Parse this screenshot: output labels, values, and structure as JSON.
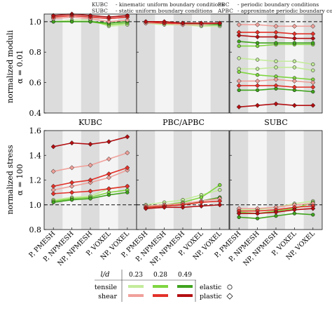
{
  "legend_top": {
    "left": [
      {
        "abbr": "KUBC",
        "desc": "- kinematic uniform boundary conditions"
      },
      {
        "abbr": "SUBC",
        "desc": "- static uniform boundary conditions"
      }
    ],
    "right": [
      {
        "abbr": "PBC",
        "desc": "- periodic boundary conditions"
      },
      {
        "abbr": "APBC",
        "desc": "- approximate periodic boundary conditions"
      }
    ]
  },
  "colors": {
    "tensile": [
      "#c3ec9a",
      "#7fd640",
      "#3fa31d"
    ],
    "shear": [
      "#f0a09a",
      "#e3322a",
      "#b30f12"
    ],
    "band": "#dcdcdc",
    "band_light": "#f4f4f4"
  },
  "chart_data": [
    {
      "type": "line",
      "ylabel": "normalized moduli",
      "ylabel2": "α = 0.01",
      "ylim": [
        0.4,
        1.05
      ],
      "yticks": [
        "0.4",
        "0.6",
        "0.8",
        "1.0"
      ],
      "ytick_values": [
        0.4,
        0.6,
        0.8,
        1.0
      ],
      "reference_line": 1.0,
      "panels": [
        {
          "label": "KUBC",
          "series": [
            {
              "load": "tensile",
              "ld": 0,
              "values": [
                1.0,
                1.01,
                1.01,
                0.97,
                0.98
              ]
            },
            {
              "load": "tensile",
              "ld": 1,
              "values": [
                1.0,
                1.0,
                1.0,
                0.98,
                0.99
              ]
            },
            {
              "load": "tensile",
              "ld": 2,
              "values": [
                1.0,
                1.0,
                1.0,
                0.99,
                1.0
              ]
            },
            {
              "load": "shear",
              "ld": 0,
              "values": [
                1.02,
                1.03,
                1.02,
                1.0,
                1.01
              ]
            },
            {
              "load": "shear",
              "ld": 1,
              "values": [
                1.03,
                1.04,
                1.03,
                1.02,
                1.03
              ]
            },
            {
              "load": "shear",
              "ld": 2,
              "values": [
                1.04,
                1.05,
                1.04,
                1.03,
                1.04
              ]
            }
          ]
        },
        {
          "label": "PBC/APBC",
          "series": [
            {
              "load": "tensile",
              "ld": 0,
              "values": [
                0.99,
                0.98,
                0.98,
                0.97,
                0.97
              ]
            },
            {
              "load": "tensile",
              "ld": 1,
              "values": [
                0.99,
                0.99,
                0.98,
                0.98,
                0.98
              ]
            },
            {
              "load": "tensile",
              "ld": 2,
              "values": [
                0.99,
                0.99,
                0.99,
                0.98,
                0.98
              ]
            },
            {
              "load": "shear",
              "ld": 0,
              "values": [
                0.99,
                0.99,
                0.98,
                0.98,
                0.99
              ]
            },
            {
              "load": "shear",
              "ld": 1,
              "values": [
                1.0,
                0.99,
                0.99,
                0.99,
                0.99
              ]
            },
            {
              "load": "shear",
              "ld": 2,
              "values": [
                1.0,
                1.0,
                0.99,
                0.99,
                0.99
              ]
            }
          ]
        },
        {
          "label": "SUBC",
          "series": [
            {
              "load": "tensile",
              "ld": 0,
              "values": [
                0.76,
                0.75,
                0.74,
                0.74,
                0.72
              ]
            },
            {
              "load": "tensile",
              "ld": 0,
              "values": [
                0.69,
                0.69,
                0.7,
                0.7,
                0.68
              ]
            },
            {
              "load": "tensile",
              "ld": 1,
              "values": [
                0.84,
                0.84,
                0.85,
                0.85,
                0.85
              ]
            },
            {
              "load": "tensile",
              "ld": 1,
              "values": [
                0.67,
                0.65,
                0.64,
                0.63,
                0.62
              ]
            },
            {
              "load": "tensile",
              "ld": 2,
              "values": [
                0.87,
                0.86,
                0.86,
                0.86,
                0.86
              ]
            },
            {
              "load": "tensile",
              "ld": 2,
              "values": [
                0.55,
                0.55,
                0.56,
                0.55,
                0.54
              ]
            },
            {
              "load": "shear",
              "ld": 0,
              "values": [
                0.98,
                0.98,
                0.97,
                0.97,
                0.97
              ]
            },
            {
              "load": "shear",
              "ld": 0,
              "values": [
                0.61,
                0.61,
                0.62,
                0.61,
                0.6
              ]
            },
            {
              "load": "shear",
              "ld": 1,
              "values": [
                0.93,
                0.93,
                0.93,
                0.92,
                0.92
              ]
            },
            {
              "load": "shear",
              "ld": 1,
              "values": [
                0.58,
                0.58,
                0.58,
                0.57,
                0.57
              ]
            },
            {
              "load": "shear",
              "ld": 2,
              "values": [
                0.91,
                0.9,
                0.9,
                0.89,
                0.89
              ]
            },
            {
              "load": "shear",
              "ld": 2,
              "values": [
                0.44,
                0.45,
                0.46,
                0.45,
                0.45
              ]
            }
          ]
        }
      ]
    },
    {
      "type": "line",
      "ylabel": "normalized stress",
      "ylabel2": "α = 100",
      "ylim": [
        0.8,
        1.6
      ],
      "yticks": [
        "0.8",
        "1.0",
        "1.2",
        "1.4",
        "1.6"
      ],
      "ytick_values": [
        0.8,
        1.0,
        1.2,
        1.4,
        1.6
      ],
      "reference_line": 1.0,
      "categories": [
        "P, PMESH",
        "P, NPMESH",
        "NP, NPMESH",
        "P, VOXEL",
        "NP, VOXEL"
      ],
      "panels": [
        {
          "series": [
            {
              "load": "tensile",
              "ld": 0,
              "values": [
                1.04,
                1.06,
                1.07,
                1.13,
                1.15
              ]
            },
            {
              "load": "tensile",
              "ld": 1,
              "values": [
                1.03,
                1.05,
                1.06,
                1.1,
                1.12
              ]
            },
            {
              "load": "tensile",
              "ld": 2,
              "values": [
                1.02,
                1.04,
                1.05,
                1.08,
                1.1
              ]
            },
            {
              "load": "shear",
              "ld": 0,
              "values": [
                1.27,
                1.3,
                1.32,
                1.37,
                1.42
              ]
            },
            {
              "load": "shear",
              "ld": 0,
              "values": [
                1.12,
                1.15,
                1.18,
                1.22,
                1.28
              ]
            },
            {
              "load": "shear",
              "ld": 1,
              "values": [
                1.15,
                1.18,
                1.2,
                1.25,
                1.3
              ]
            },
            {
              "load": "shear",
              "ld": 1,
              "values": [
                1.09,
                1.1,
                1.11,
                1.13,
                1.15
              ]
            },
            {
              "load": "shear",
              "ld": 2,
              "values": [
                1.47,
                1.5,
                1.49,
                1.51,
                1.55
              ]
            }
          ]
        },
        {
          "series": [
            {
              "load": "tensile",
              "ld": 0,
              "values": [
                1.0,
                1.02,
                1.04,
                1.08,
                1.12
              ]
            },
            {
              "load": "tensile",
              "ld": 1,
              "values": [
                0.99,
                1.0,
                1.02,
                1.06,
                1.16
              ]
            },
            {
              "load": "tensile",
              "ld": 2,
              "values": [
                0.98,
                0.99,
                1.0,
                1.03,
                1.06
              ]
            },
            {
              "load": "shear",
              "ld": 0,
              "values": [
                0.99,
                1.0,
                1.01,
                1.03,
                1.05
              ]
            },
            {
              "load": "shear",
              "ld": 1,
              "values": [
                0.98,
                0.99,
                1.0,
                1.02,
                1.03
              ]
            },
            {
              "load": "shear",
              "ld": 2,
              "values": [
                0.97,
                0.98,
                0.98,
                0.99,
                1.0
              ]
            }
          ]
        },
        {
          "series": [
            {
              "load": "tensile",
              "ld": 0,
              "values": [
                0.96,
                0.96,
                0.98,
                1.01,
                1.03
              ]
            },
            {
              "load": "tensile",
              "ld": 1,
              "values": [
                0.94,
                0.93,
                0.95,
                0.97,
                1.02
              ]
            },
            {
              "load": "tensile",
              "ld": 2,
              "values": [
                0.9,
                0.89,
                0.91,
                0.93,
                0.92
              ]
            },
            {
              "load": "shear",
              "ld": 0,
              "values": [
                0.97,
                0.97,
                0.98,
                1.0,
                1.01
              ]
            },
            {
              "load": "shear",
              "ld": 1,
              "values": [
                0.95,
                0.95,
                0.96,
                0.98,
                0.99
              ]
            },
            {
              "load": "shear",
              "ld": 2,
              "values": [
                0.93,
                0.93,
                0.94,
                0.96,
                0.97
              ]
            }
          ]
        }
      ]
    }
  ],
  "legend_bottom": {
    "header": "l/d",
    "ld_values": [
      "0.23",
      "0.28",
      "0.49"
    ],
    "rows": [
      "tensile",
      "shear"
    ],
    "markers": [
      {
        "label": "elastic",
        "marker": "circle-icon"
      },
      {
        "label": "plastic",
        "marker": "diamond-icon"
      }
    ]
  }
}
